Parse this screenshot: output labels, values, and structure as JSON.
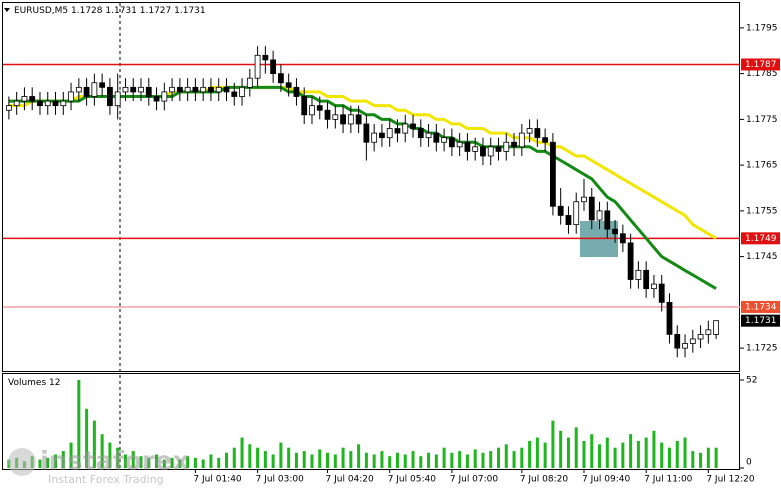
{
  "chart_data": [
    {
      "type": "candlestick",
      "symbol": "EURUSD,M5",
      "ylim": [
        1.172,
        1.18
      ],
      "yticks": [
        1.1725,
        1.1745,
        1.1755,
        1.1765,
        1.1775,
        1.1785,
        1.1795
      ],
      "levels": [
        {
          "value": 1.1787,
          "color": "#e01010"
        },
        {
          "value": 1.1749,
          "color": "#e01010"
        },
        {
          "value": 1.1734,
          "color": "#f0a0a0"
        }
      ],
      "open": [
        1.1777,
        1.1778,
        1.1779,
        1.178,
        1.1779,
        1.1778,
        1.1779,
        1.1778,
        1.1779,
        1.1781,
        1.1782,
        1.178,
        1.1783,
        1.1782,
        1.1778,
        1.1781,
        1.1782,
        1.1781,
        1.1782,
        1.178,
        1.1779,
        1.1781,
        1.1782,
        1.1781,
        1.1782,
        1.1781,
        1.1782,
        1.1781,
        1.1782,
        1.1781,
        1.178,
        1.1782,
        1.1784,
        1.1789,
        1.1788,
        1.1785,
        1.1783,
        1.1782,
        1.178,
        1.1776,
        1.1778,
        1.1777,
        1.1775,
        1.1776,
        1.1774,
        1.1776,
        1.1774,
        1.177,
        1.1772,
        1.1771,
        1.1773,
        1.1772,
        1.1774,
        1.1773,
        1.1771,
        1.1772,
        1.177,
        1.1771,
        1.1769,
        1.177,
        1.1768,
        1.1769,
        1.1767,
        1.1769,
        1.1768,
        1.177,
        1.1769,
        1.1772,
        1.1773,
        1.1771,
        1.177,
        1.1756,
        1.1754,
        1.1752,
        1.1757,
        1.1758,
        1.1753,
        1.1755,
        1.1751,
        1.175,
        1.1748,
        1.174,
        1.1742,
        1.1738,
        1.1739,
        1.1735,
        1.1728,
        1.1725,
        1.1726,
        1.1727,
        1.1728,
        1.1728
      ],
      "high": [
        1.178,
        1.1781,
        1.1782,
        1.1782,
        1.1781,
        1.1781,
        1.1781,
        1.1781,
        1.1783,
        1.1784,
        1.1784,
        1.1785,
        1.1785,
        1.1784,
        1.1785,
        1.1784,
        1.1784,
        1.1784,
        1.1784,
        1.1782,
        1.1783,
        1.1784,
        1.1784,
        1.1784,
        1.1784,
        1.1784,
        1.1784,
        1.1784,
        1.1784,
        1.1783,
        1.1784,
        1.1786,
        1.1791,
        1.1791,
        1.179,
        1.1787,
        1.1785,
        1.1784,
        1.1782,
        1.178,
        1.178,
        1.1779,
        1.1778,
        1.1778,
        1.1778,
        1.1778,
        1.1776,
        1.1774,
        1.1774,
        1.1775,
        1.1775,
        1.1776,
        1.1776,
        1.1775,
        1.1774,
        1.1774,
        1.1773,
        1.1773,
        1.1772,
        1.1772,
        1.1771,
        1.1771,
        1.1771,
        1.1771,
        1.1772,
        1.1772,
        1.1774,
        1.1775,
        1.1775,
        1.1773,
        1.1772,
        1.176,
        1.1756,
        1.1759,
        1.1762,
        1.176,
        1.1757,
        1.1757,
        1.1753,
        1.1752,
        1.175,
        1.1744,
        1.1744,
        1.1741,
        1.1741,
        1.1737,
        1.173,
        1.1728,
        1.1729,
        1.173,
        1.1731,
        1.1731
      ],
      "low": [
        1.1775,
        1.1776,
        1.1777,
        1.1777,
        1.1776,
        1.1776,
        1.1776,
        1.1776,
        1.1777,
        1.1779,
        1.1778,
        1.1778,
        1.178,
        1.1776,
        1.1775,
        1.1779,
        1.1779,
        1.1779,
        1.1778,
        1.1777,
        1.1777,
        1.1779,
        1.1779,
        1.1779,
        1.1779,
        1.1779,
        1.1779,
        1.1779,
        1.1779,
        1.1778,
        1.1778,
        1.178,
        1.1782,
        1.1785,
        1.1783,
        1.1781,
        1.178,
        1.1778,
        1.1774,
        1.1774,
        1.1775,
        1.1773,
        1.1773,
        1.1772,
        1.1772,
        1.1772,
        1.1766,
        1.1768,
        1.1769,
        1.1769,
        1.177,
        1.177,
        1.1771,
        1.1769,
        1.1769,
        1.1768,
        1.1768,
        1.1767,
        1.1767,
        1.1766,
        1.1766,
        1.1765,
        1.1765,
        1.1766,
        1.1766,
        1.1767,
        1.1767,
        1.177,
        1.1769,
        1.1768,
        1.1754,
        1.1752,
        1.175,
        1.175,
        1.1755,
        1.1751,
        1.1751,
        1.1749,
        1.1748,
        1.1746,
        1.1738,
        1.1738,
        1.1736,
        1.1736,
        1.1733,
        1.1726,
        1.1723,
        1.1723,
        1.1724,
        1.1725,
        1.1726,
        1.1727
      ],
      "close": [
        1.1778,
        1.1779,
        1.178,
        1.1779,
        1.1778,
        1.1779,
        1.1778,
        1.1779,
        1.1781,
        1.1782,
        1.178,
        1.1783,
        1.1782,
        1.1778,
        1.1781,
        1.1782,
        1.1781,
        1.1782,
        1.178,
        1.1779,
        1.1781,
        1.1782,
        1.1781,
        1.1782,
        1.1781,
        1.1782,
        1.1781,
        1.1782,
        1.1781,
        1.178,
        1.1782,
        1.1784,
        1.1789,
        1.1788,
        1.1785,
        1.1783,
        1.1782,
        1.178,
        1.1776,
        1.1778,
        1.1777,
        1.1775,
        1.1776,
        1.1774,
        1.1776,
        1.1774,
        1.177,
        1.1772,
        1.1771,
        1.1773,
        1.1772,
        1.1774,
        1.1773,
        1.1771,
        1.1772,
        1.177,
        1.1771,
        1.1769,
        1.177,
        1.1768,
        1.1769,
        1.1767,
        1.1769,
        1.1768,
        1.177,
        1.1769,
        1.1772,
        1.1773,
        1.1771,
        1.177,
        1.1756,
        1.1754,
        1.1752,
        1.1757,
        1.1758,
        1.1753,
        1.1755,
        1.1751,
        1.175,
        1.1748,
        1.174,
        1.1742,
        1.1738,
        1.1739,
        1.1735,
        1.1728,
        1.1725,
        1.1726,
        1.1727,
        1.1728,
        1.1729,
        1.1731
      ],
      "moving_averages": [
        {
          "color": "#f2e600",
          "values": [
            1.1778,
            1.1778,
            1.1778,
            1.1779,
            1.1779,
            1.1779,
            1.1779,
            1.1779,
            1.1779,
            1.178,
            1.178,
            1.178,
            1.178,
            1.178,
            1.178,
            1.178,
            1.178,
            1.178,
            1.178,
            1.178,
            1.178,
            1.1781,
            1.1781,
            1.1781,
            1.1781,
            1.1781,
            1.1782,
            1.1782,
            1.1782,
            1.1782,
            1.1782,
            1.1782,
            1.1782,
            1.1782,
            1.1782,
            1.1782,
            1.1782,
            1.1781,
            1.1781,
            1.1781,
            1.1781,
            1.178,
            1.178,
            1.178,
            1.1779,
            1.1779,
            1.1779,
            1.1778,
            1.1778,
            1.1778,
            1.1777,
            1.1777,
            1.1776,
            1.1776,
            1.1776,
            1.1775,
            1.1775,
            1.1774,
            1.1774,
            1.1773,
            1.1773,
            1.1773,
            1.1772,
            1.1772,
            1.1772,
            1.1771,
            1.1771,
            1.1771,
            1.177,
            1.177,
            1.1769,
            1.1769,
            1.1768,
            1.1767,
            1.1767,
            1.1766,
            1.1765,
            1.1764,
            1.1763,
            1.1762,
            1.1761,
            1.176,
            1.1759,
            1.1758,
            1.1757,
            1.1756,
            1.1755,
            1.1754,
            1.1752,
            1.1751,
            1.175,
            1.1749
          ]
        },
        {
          "color": "#138a13",
          "values": [
            1.1779,
            1.1779,
            1.1779,
            1.1779,
            1.1779,
            1.1779,
            1.1779,
            1.1779,
            1.1779,
            1.1779,
            1.178,
            1.178,
            1.178,
            1.178,
            1.178,
            1.178,
            1.178,
            1.178,
            1.178,
            1.178,
            1.178,
            1.178,
            1.1781,
            1.1781,
            1.1781,
            1.1781,
            1.1781,
            1.1781,
            1.1782,
            1.1782,
            1.1782,
            1.1782,
            1.1782,
            1.1782,
            1.1782,
            1.1782,
            1.1781,
            1.1781,
            1.178,
            1.178,
            1.1779,
            1.1779,
            1.1778,
            1.1778,
            1.1777,
            1.1777,
            1.1776,
            1.1776,
            1.1775,
            1.1775,
            1.1774,
            1.1774,
            1.1773,
            1.1773,
            1.1772,
            1.1772,
            1.1771,
            1.1771,
            1.177,
            1.177,
            1.177,
            1.1769,
            1.1769,
            1.1769,
            1.1769,
            1.1769,
            1.1769,
            1.1769,
            1.1768,
            1.1768,
            1.1767,
            1.1766,
            1.1765,
            1.1764,
            1.1763,
            1.1762,
            1.176,
            1.1758,
            1.1757,
            1.1755,
            1.1753,
            1.1751,
            1.1749,
            1.1747,
            1.1745,
            1.1744,
            1.1743,
            1.1742,
            1.1741,
            1.174,
            1.1739,
            1.1738
          ]
        }
      ]
    },
    {
      "type": "bar",
      "title": "Volumes",
      "color": "#1fb51f",
      "ylim": [
        0,
        52
      ],
      "yticks": [
        0,
        52
      ],
      "categories": [
        null,
        null,
        null,
        null,
        null,
        null,
        null,
        null,
        null,
        null,
        null,
        null,
        null,
        null,
        null,
        null,
        null,
        null,
        null,
        null,
        null,
        null,
        null,
        null,
        "7 Jul 01:40",
        null,
        null,
        null,
        null,
        null,
        null,
        null,
        "7 Jul 03:00",
        null,
        null,
        null,
        null,
        null,
        null,
        null,
        null,
        "7 Jul 04:20",
        null,
        null,
        null,
        null,
        null,
        null,
        null,
        "7 Jul 05:40",
        null,
        null,
        null,
        null,
        null,
        null,
        null,
        "7 Jul 07:00",
        null,
        null,
        null,
        null,
        null,
        null,
        null,
        null,
        "7 Jul 08:20",
        null,
        null,
        null,
        null,
        null,
        null,
        null,
        "7 Jul 09:40",
        null,
        null,
        null,
        null,
        null,
        null,
        null,
        "7 Jul 11:00",
        null,
        null,
        null,
        null,
        null,
        null,
        null,
        "7 Jul 12:20",
        null
      ],
      "values": [
        5,
        6,
        4,
        7,
        5,
        6,
        8,
        10,
        15,
        52,
        35,
        28,
        20,
        15,
        12,
        8,
        10,
        7,
        6,
        8,
        5,
        6,
        5,
        7,
        6,
        5,
        8,
        6,
        9,
        12,
        18,
        14,
        12,
        10,
        8,
        15,
        12,
        9,
        10,
        8,
        11,
        9,
        8,
        12,
        10,
        14,
        9,
        8,
        10,
        7,
        9,
        8,
        10,
        7,
        9,
        8,
        12,
        9,
        10,
        8,
        11,
        9,
        10,
        12,
        14,
        10,
        12,
        16,
        18,
        15,
        28,
        22,
        18,
        24,
        16,
        20,
        14,
        18,
        12,
        15,
        20,
        16,
        18,
        22,
        15,
        12,
        16,
        18,
        10,
        9,
        12,
        12
      ]
    }
  ],
  "watermark": {
    "brand": "instaforex",
    "tagline": "Instant Forex Trading"
  }
}
